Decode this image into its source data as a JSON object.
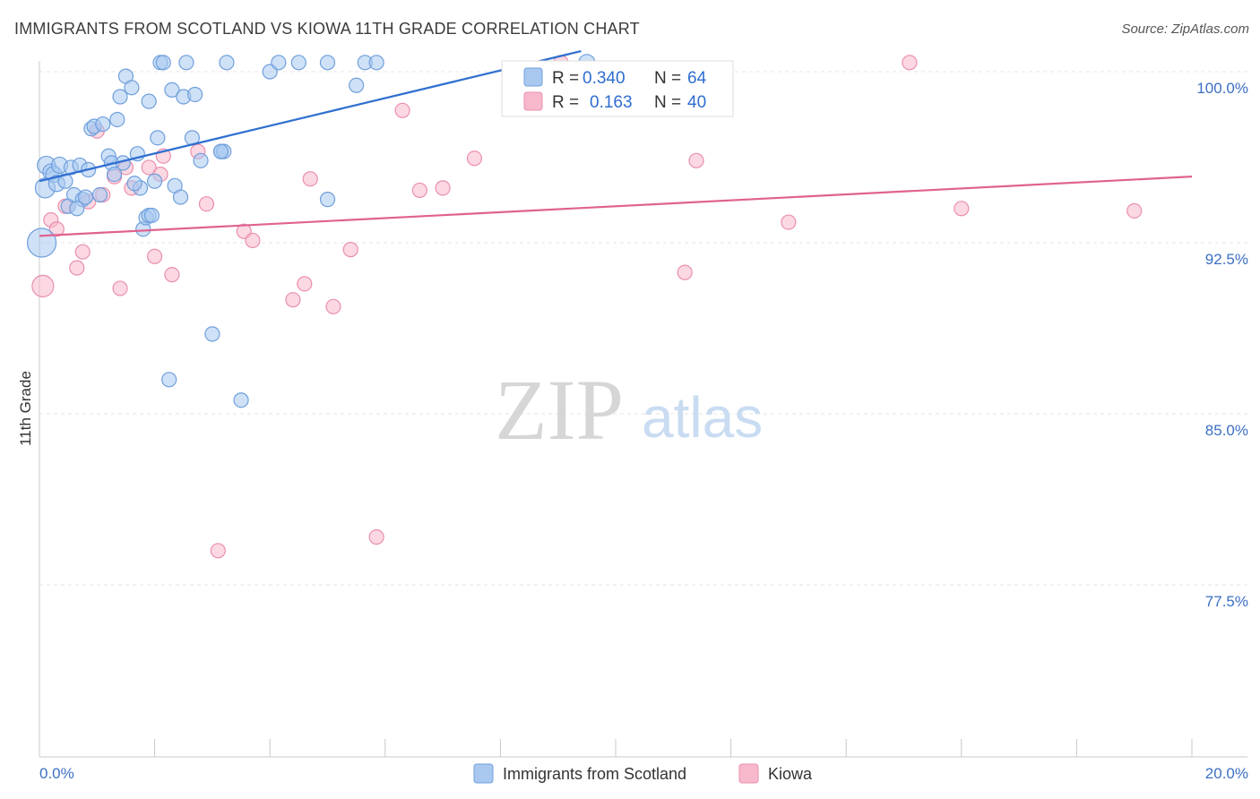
{
  "title": "IMMIGRANTS FROM SCOTLAND VS KIOWA 11TH GRADE CORRELATION CHART",
  "source": "Source: ZipAtlas.com",
  "watermark": {
    "zip": "ZIP",
    "atlas": "atlas"
  },
  "colors": {
    "series1_fill": "#a8c8f0",
    "series1_stroke": "#6f9fdc",
    "series1_line": "#2f6fd0",
    "series2_fill": "#f7b8cb",
    "series2_stroke": "#ea8fae",
    "series2_line": "#e0628f",
    "tick_text": "#3b6fc4",
    "grid": "#e4e4e4"
  },
  "legend": {
    "items": [
      {
        "r_label": "R =",
        "r_value": "0.340",
        "n_label": "N =",
        "n_value": "64"
      },
      {
        "r_label": "R =",
        "r_value": "0.163",
        "n_label": "N =",
        "n_value": "40"
      }
    ]
  },
  "bottom_legend": [
    "Immigrants from Scotland",
    "Kiowa"
  ],
  "chart_data": {
    "type": "scatter",
    "title": "IMMIGRANTS FROM SCOTLAND VS KIOWA 11TH GRADE CORRELATION CHART",
    "xlabel": "",
    "ylabel": "11th Grade",
    "xlim": [
      0,
      20
    ],
    "ylim": [
      70.0,
      101.0
    ],
    "x_tick_labels": [
      "0.0%",
      "20.0%"
    ],
    "y_ticks": [
      77.5,
      85.0,
      92.5,
      100.0
    ],
    "y_tick_labels": [
      "77.5%",
      "85.0%",
      "92.5%",
      "100.0%"
    ],
    "grid": true,
    "legend_placement": "top-center",
    "series": [
      {
        "name": "Immigrants from Scotland",
        "r": 0.34,
        "n": 64,
        "trend": {
          "x": [
            0,
            9.4
          ],
          "y": [
            95.2,
            100.9
          ]
        },
        "points": [
          [
            0.04,
            92.5,
            16
          ],
          [
            0.1,
            94.9,
            11
          ],
          [
            0.12,
            95.9,
            10
          ],
          [
            0.2,
            95.6,
            9
          ],
          [
            0.25,
            95.5,
            9
          ],
          [
            0.3,
            95.1,
            9
          ],
          [
            0.35,
            95.9,
            9
          ],
          [
            0.45,
            95.2,
            8
          ],
          [
            0.5,
            94.1,
            8
          ],
          [
            0.55,
            95.8,
            8
          ],
          [
            0.6,
            94.6,
            8
          ],
          [
            0.7,
            95.9,
            8
          ],
          [
            0.75,
            94.4,
            8
          ],
          [
            0.8,
            94.5,
            8
          ],
          [
            0.85,
            95.7,
            8
          ],
          [
            0.9,
            97.5,
            8
          ],
          [
            0.95,
            97.6,
            8
          ],
          [
            1.1,
            97.7,
            8
          ],
          [
            1.2,
            96.3,
            8
          ],
          [
            1.25,
            96.0,
            8
          ],
          [
            1.3,
            95.5,
            8
          ],
          [
            1.35,
            97.9,
            8
          ],
          [
            1.4,
            98.9,
            8
          ],
          [
            1.45,
            96.0,
            8
          ],
          [
            1.5,
            99.8,
            8
          ],
          [
            1.6,
            99.3,
            8
          ],
          [
            1.7,
            96.4,
            8
          ],
          [
            1.75,
            94.9,
            8
          ],
          [
            1.8,
            93.1,
            8
          ],
          [
            1.85,
            93.6,
            8
          ],
          [
            1.9,
            93.7,
            8
          ],
          [
            1.9,
            98.7,
            8
          ],
          [
            2.0,
            95.2,
            8
          ],
          [
            2.05,
            97.1,
            8
          ],
          [
            2.1,
            100.4,
            8
          ],
          [
            2.15,
            100.4,
            8
          ],
          [
            2.3,
            99.2,
            8
          ],
          [
            2.35,
            95.0,
            8
          ],
          [
            2.45,
            94.5,
            8
          ],
          [
            2.5,
            98.9,
            8
          ],
          [
            2.55,
            100.4,
            8
          ],
          [
            2.65,
            97.1,
            8
          ],
          [
            2.7,
            99.0,
            8
          ],
          [
            2.8,
            96.1,
            8
          ],
          [
            3.0,
            88.5,
            8
          ],
          [
            3.15,
            96.5,
            8
          ],
          [
            3.2,
            96.5,
            8
          ],
          [
            3.25,
            100.4,
            8
          ],
          [
            2.25,
            86.5,
            8
          ],
          [
            3.5,
            85.6,
            8
          ],
          [
            4.0,
            100.0,
            8
          ],
          [
            4.15,
            100.4,
            8
          ],
          [
            4.5,
            100.4,
            8
          ],
          [
            5.0,
            94.4,
            8
          ],
          [
            5.0,
            100.4,
            8
          ],
          [
            5.5,
            99.4,
            8
          ],
          [
            5.65,
            100.4,
            8
          ],
          [
            5.85,
            100.4,
            8
          ],
          [
            9.5,
            100.4,
            9
          ],
          [
            1.65,
            95.1,
            8
          ],
          [
            0.65,
            94.0,
            8
          ],
          [
            1.05,
            94.6,
            8
          ],
          [
            3.15,
            96.5,
            8
          ],
          [
            1.95,
            93.7,
            8
          ]
        ]
      },
      {
        "name": "Kiowa",
        "r": 0.163,
        "n": 40,
        "trend": {
          "x": [
            0,
            20.0
          ],
          "y": [
            92.8,
            95.4
          ]
        },
        "points": [
          [
            0.06,
            90.6,
            12
          ],
          [
            0.2,
            93.5,
            8
          ],
          [
            0.3,
            93.1,
            8
          ],
          [
            0.45,
            94.1,
            8
          ],
          [
            0.65,
            91.4,
            8
          ],
          [
            0.75,
            92.1,
            8
          ],
          [
            0.85,
            94.3,
            8
          ],
          [
            1.0,
            97.4,
            8
          ],
          [
            1.1,
            94.6,
            8
          ],
          [
            1.3,
            95.4,
            8
          ],
          [
            1.4,
            90.5,
            8
          ],
          [
            1.5,
            95.8,
            8
          ],
          [
            1.6,
            94.9,
            8
          ],
          [
            1.9,
            95.8,
            8
          ],
          [
            2.0,
            91.9,
            8
          ],
          [
            2.1,
            95.5,
            8
          ],
          [
            2.15,
            96.3,
            8
          ],
          [
            2.3,
            91.1,
            8
          ],
          [
            2.75,
            96.5,
            8
          ],
          [
            2.9,
            94.2,
            8
          ],
          [
            3.1,
            79.0,
            8
          ],
          [
            3.55,
            93.0,
            8
          ],
          [
            3.7,
            92.6,
            8
          ],
          [
            4.4,
            90.0,
            8
          ],
          [
            4.6,
            90.7,
            8
          ],
          [
            4.7,
            95.3,
            8
          ],
          [
            5.1,
            89.7,
            8
          ],
          [
            5.4,
            92.2,
            8
          ],
          [
            5.85,
            79.6,
            8
          ],
          [
            6.3,
            98.3,
            8
          ],
          [
            6.6,
            94.8,
            8
          ],
          [
            7.0,
            94.9,
            8
          ],
          [
            7.55,
            96.2,
            8
          ],
          [
            9.05,
            100.4,
            8
          ],
          [
            11.2,
            91.2,
            8
          ],
          [
            11.4,
            96.1,
            8
          ],
          [
            13.0,
            93.4,
            8
          ],
          [
            15.1,
            100.4,
            8
          ],
          [
            16.0,
            94.0,
            8
          ],
          [
            19.0,
            93.9,
            8
          ]
        ]
      }
    ]
  }
}
